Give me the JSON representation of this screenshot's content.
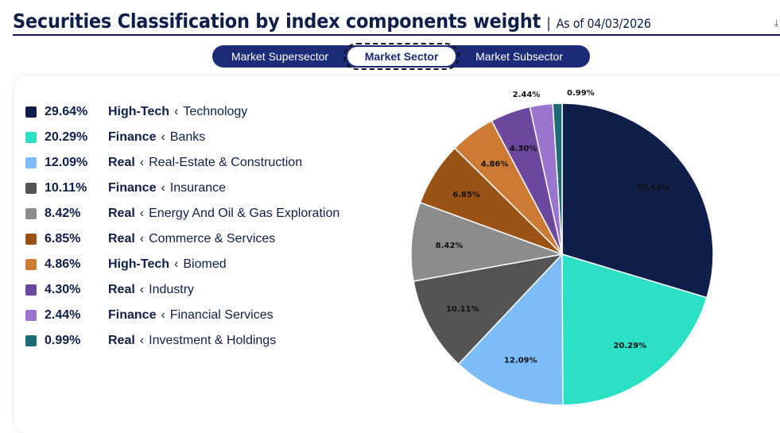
{
  "header": {
    "title": "Securities Classification by index components weight",
    "as_of": "As of 04/03/2026"
  },
  "tabs": [
    {
      "label": "Market Supersector",
      "active": false
    },
    {
      "label": "Market Sector",
      "active": true
    },
    {
      "label": "Market Subsector",
      "active": false
    }
  ],
  "chart_data": {
    "type": "pie",
    "start": "top",
    "direction": "clockwise",
    "slices": [
      {
        "group": "High-Tech",
        "label": "Technology",
        "value": 29.64,
        "display": "29.64%",
        "color": "#0f1f4a"
      },
      {
        "group": "Finance",
        "label": "Banks",
        "value": 20.29,
        "display": "20.29%",
        "color": "#2ce0c5"
      },
      {
        "group": "Real",
        "label": "Real-Estate & Construction",
        "value": 12.09,
        "display": "12.09%",
        "color": "#7bbcf9"
      },
      {
        "group": "Finance",
        "label": "Insurance",
        "value": 10.11,
        "display": "10.11%",
        "color": "#545454"
      },
      {
        "group": "Real",
        "label": "Energy And Oil & Gas Exploration",
        "value": 8.42,
        "display": "8.42%",
        "color": "#8c8c8c"
      },
      {
        "group": "Real",
        "label": "Commerce & Services",
        "value": 6.85,
        "display": "6.85%",
        "color": "#9b5215"
      },
      {
        "group": "High-Tech",
        "label": "Biomed",
        "value": 4.86,
        "display": "4.86%",
        "color": "#cc7a34"
      },
      {
        "group": "Real",
        "label": "Industry",
        "value": 4.3,
        "display": "4.30%",
        "color": "#6b489d"
      },
      {
        "group": "Finance",
        "label": "Financial Services",
        "value": 2.44,
        "display": "2.44%",
        "color": "#9b75cd"
      },
      {
        "group": "Real",
        "label": "Investment & Holdings",
        "value": 0.99,
        "display": "0.99%",
        "color": "#1e6b78"
      }
    ]
  }
}
